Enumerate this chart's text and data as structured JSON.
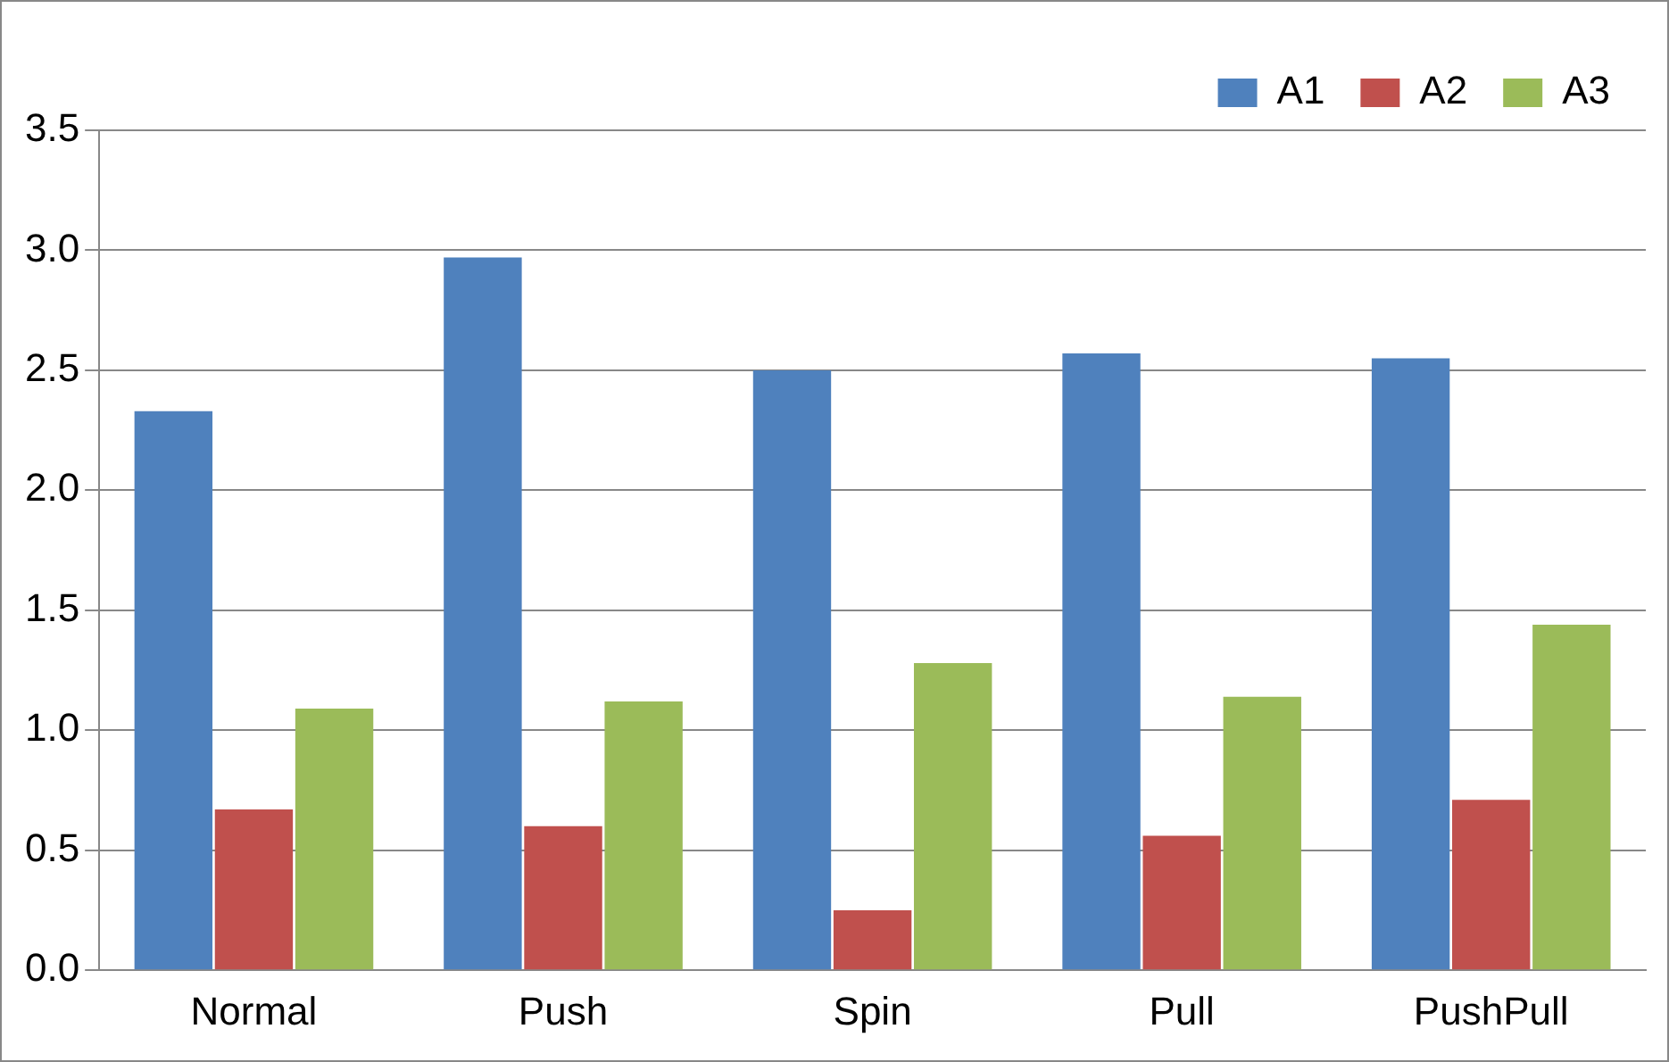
{
  "chart_data": {
    "type": "bar",
    "categories": [
      "Normal",
      "Push",
      "Spin",
      "Pull",
      "PushPull"
    ],
    "series": [
      {
        "name": "A1",
        "color": "#4f81bd",
        "values": [
          2.33,
          2.97,
          2.5,
          2.57,
          2.55
        ]
      },
      {
        "name": "A2",
        "color": "#c0504d",
        "values": [
          0.67,
          0.6,
          0.25,
          0.56,
          0.71
        ]
      },
      {
        "name": "A3",
        "color": "#9bbb59",
        "values": [
          1.09,
          1.12,
          1.28,
          1.14,
          1.44
        ]
      }
    ],
    "ylim": [
      0,
      3.5
    ],
    "yticks": [
      {
        "value": 0,
        "label": "0.0"
      },
      {
        "value": 0.5,
        "label": "0.5"
      },
      {
        "value": 1,
        "label": "1.0"
      },
      {
        "value": 1.5,
        "label": "1.5"
      },
      {
        "value": 2,
        "label": "2.0"
      },
      {
        "value": 2.5,
        "label": "2.5"
      },
      {
        "value": 3,
        "label": "3.0"
      },
      {
        "value": 3.5,
        "label": "3.5"
      }
    ],
    "grid": "y",
    "legend": "top right"
  }
}
